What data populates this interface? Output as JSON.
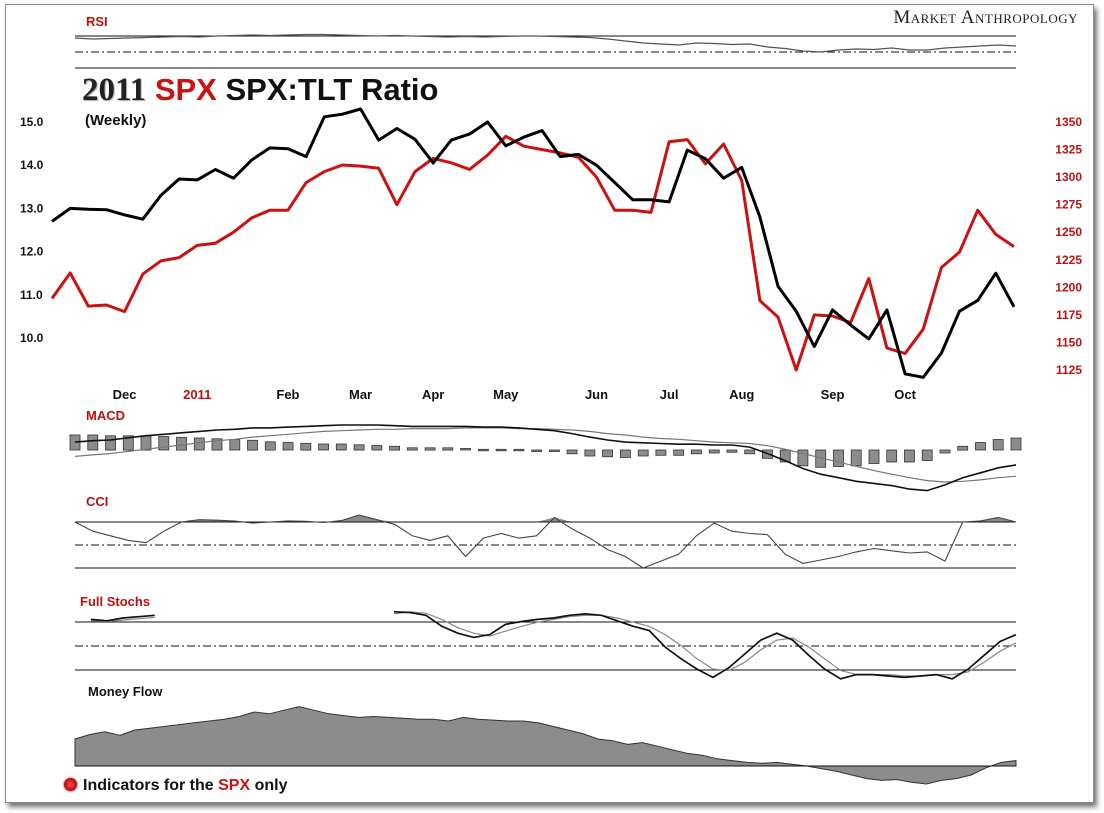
{
  "brand": "Market Anthropology",
  "title": {
    "year": "2011",
    "ticker": "SPX",
    "rest": "SPX:TLT Ratio"
  },
  "subtitle": "(Weekly)",
  "footnote": {
    "prefix": "Indicators for the ",
    "ticker": "SPX",
    "suffix": " only"
  },
  "colors": {
    "spx": "#cc1111",
    "ratio": "#000000",
    "fill": "#8c8c8c",
    "label_red": "#bb1111"
  },
  "chart_data": {
    "type": "line",
    "title": "2011 SPX SPX:TLT Ratio",
    "subtitle": "(Weekly)",
    "x_ticks": [
      {
        "label": "Dec",
        "index": 4
      },
      {
        "label": "2011",
        "index": 8
      },
      {
        "label": "Feb",
        "index": 13
      },
      {
        "label": "Mar",
        "index": 17
      },
      {
        "label": "Apr",
        "index": 21
      },
      {
        "label": "May",
        "index": 25
      },
      {
        "label": "Jun",
        "index": 30
      },
      {
        "label": "Jul",
        "index": 34
      },
      {
        "label": "Aug",
        "index": 38
      },
      {
        "label": "Sep",
        "index": 43
      },
      {
        "label": "Oct",
        "index": 47
      }
    ],
    "left_axis": {
      "ticks": [
        "15.0",
        "14.0",
        "13.0",
        "12.0",
        "11.0",
        "10.0"
      ],
      "values": [
        15,
        14,
        13,
        12,
        11,
        10
      ]
    },
    "right_axis": {
      "ticks": [
        "1350",
        "1325",
        "1300",
        "1275",
        "1250",
        "1225",
        "1200",
        "1175",
        "1150",
        "1125"
      ],
      "values": [
        1350,
        1325,
        1300,
        1275,
        1250,
        1225,
        1200,
        1175,
        1150,
        1125
      ]
    },
    "series": [
      {
        "axis": "left",
        "values": [
          12.7,
          13.0,
          12.98,
          12.97,
          12.85,
          12.75,
          13.3,
          13.68,
          13.66,
          13.9,
          13.7,
          14.12,
          14.4,
          14.38,
          14.2,
          15.12,
          15.18,
          15.3,
          14.58,
          14.85,
          14.6,
          14.05,
          14.58,
          14.72,
          15.0,
          14.45,
          14.65,
          14.8,
          14.2,
          14.25,
          14.0,
          13.6,
          13.2,
          13.2,
          13.15,
          14.35,
          14.15,
          13.7,
          13.95,
          12.8,
          11.2,
          10.62,
          9.8,
          10.65,
          10.3,
          9.98,
          10.65,
          9.17,
          9.09,
          9.65,
          10.62,
          10.87,
          11.5,
          10.72
        ]
      },
      {
        "axis": "right",
        "values": [
          1190,
          1213,
          1183,
          1184,
          1178,
          1212,
          1224,
          1227,
          1238,
          1240,
          1250,
          1263,
          1270,
          1270,
          1295,
          1305,
          1311,
          1310,
          1308,
          1275,
          1305,
          1317,
          1313,
          1307,
          1320,
          1337,
          1328,
          1325,
          1322,
          1318,
          1300,
          1270,
          1270,
          1268,
          1332,
          1334,
          1312,
          1330,
          1297,
          1188,
          1173,
          1125,
          1175,
          1174,
          1168,
          1208,
          1145,
          1140,
          1162,
          1218,
          1232,
          1270,
          1248,
          1237
        ]
      }
    ],
    "indicators": [
      {
        "label": "RSI",
        "values": [
          84,
          82,
          83,
          84,
          85,
          86,
          87,
          86,
          88,
          89,
          90,
          89,
          90,
          91,
          91,
          90,
          89,
          88,
          89,
          88,
          87,
          86,
          87,
          86,
          87,
          88,
          88,
          87,
          86,
          85,
          82,
          78,
          74,
          72,
          70,
          74,
          73,
          71,
          72,
          66,
          63,
          58,
          56,
          60,
          62,
          61,
          64,
          60,
          60,
          64,
          66,
          68,
          70,
          68
        ]
      },
      {
        "label": "MACD",
        "macd": [
          40,
          42,
          43,
          46,
          49,
          51,
          53,
          55,
          57,
          58,
          60,
          60,
          61,
          62,
          63,
          64,
          64,
          64,
          63,
          62,
          62,
          62,
          62,
          61,
          61,
          60,
          58,
          56,
          52,
          47,
          43,
          40,
          39,
          38,
          37,
          37,
          36,
          36,
          33,
          24,
          14,
          3,
          -5,
          -10,
          -15,
          -18,
          -21,
          -26,
          -28,
          -20,
          -10,
          -3,
          4,
          8
        ],
        "signal": [
          20,
          22,
          24,
          27,
          30,
          33,
          36,
          39,
          42,
          44,
          47,
          49,
          51,
          53,
          55,
          56,
          57,
          58,
          58,
          59,
          59,
          59,
          60,
          60,
          60,
          59,
          59,
          58,
          57,
          55,
          52,
          50,
          47,
          45,
          44,
          42,
          40,
          39,
          38,
          35,
          30,
          24,
          18,
          12,
          6,
          0,
          -5,
          -10,
          -14,
          -16,
          -15,
          -13,
          -10,
          -8
        ],
        "hist": [
          20,
          20,
          19,
          19,
          19,
          18,
          17,
          16,
          15,
          14,
          13,
          11,
          10,
          9,
          8,
          8,
          7,
          6,
          5,
          3,
          3,
          3,
          2,
          1,
          1,
          1,
          -1,
          -2,
          -5,
          -8,
          -9,
          -10,
          -8,
          -7,
          -7,
          -5,
          -4,
          -3,
          -5,
          -11,
          -16,
          -21,
          -23,
          -22,
          -21,
          -18,
          -16,
          -16,
          -14,
          -4,
          5,
          10,
          14,
          16
        ]
      },
      {
        "label": "CCI",
        "values": [
          100,
          60,
          40,
          20,
          10,
          60,
          100,
          110,
          108,
          104,
          95,
          100,
          105,
          103,
          98,
          106,
          130,
          110,
          90,
          40,
          20,
          40,
          -50,
          30,
          50,
          30,
          40,
          120,
          70,
          30,
          -20,
          -50,
          -100,
          -70,
          -40,
          40,
          95,
          60,
          50,
          45,
          -40,
          -80,
          -65,
          -50,
          -30,
          -15,
          -25,
          -35,
          -30,
          -70,
          100,
          105,
          120,
          100
        ]
      },
      {
        "label": "Full Stochs",
        "k": [
          null,
          82,
          80,
          84,
          86,
          88,
          null,
          null,
          null,
          null,
          null,
          null,
          null,
          null,
          null,
          null,
          null,
          null,
          null,
          null,
          93,
          92,
          88,
          72,
          62,
          56,
          60,
          75,
          79,
          82,
          84,
          88,
          90,
          88,
          80,
          72,
          66,
          42,
          25,
          10,
          -2,
          12,
          32,
          52,
          62,
          52,
          30,
          10,
          -4,
          2,
          2,
          0,
          -2,
          0,
          2,
          -4,
          10,
          30,
          50,
          60
        ],
        "d": [
          null,
          80,
          79,
          81,
          83,
          85,
          null,
          null,
          null,
          null,
          null,
          null,
          null,
          null,
          null,
          null,
          null,
          null,
          null,
          null,
          90,
          93,
          91,
          82,
          70,
          62,
          58,
          65,
          72,
          78,
          82,
          86,
          88,
          88,
          84,
          78,
          72,
          60,
          44,
          25,
          10,
          8,
          20,
          38,
          52,
          55,
          42,
          25,
          8,
          2,
          2,
          2,
          0,
          0,
          2,
          2,
          6,
          20,
          36,
          48
        ]
      },
      {
        "label": "Money Flow",
        "values": [
          30,
          35,
          38,
          34,
          40,
          42,
          44,
          46,
          48,
          50,
          52,
          55,
          60,
          58,
          62,
          66,
          62,
          58,
          56,
          54,
          55,
          54,
          53,
          52,
          52,
          50,
          54,
          52,
          51,
          50,
          50,
          48,
          44,
          40,
          36,
          30,
          28,
          24,
          26,
          22,
          18,
          14,
          12,
          8,
          6,
          4,
          3,
          4,
          2,
          0,
          -3,
          -6,
          -10,
          -14,
          -16,
          -15,
          -18,
          -20,
          -16,
          -14,
          -10,
          -2,
          4,
          6
        ]
      }
    ]
  }
}
